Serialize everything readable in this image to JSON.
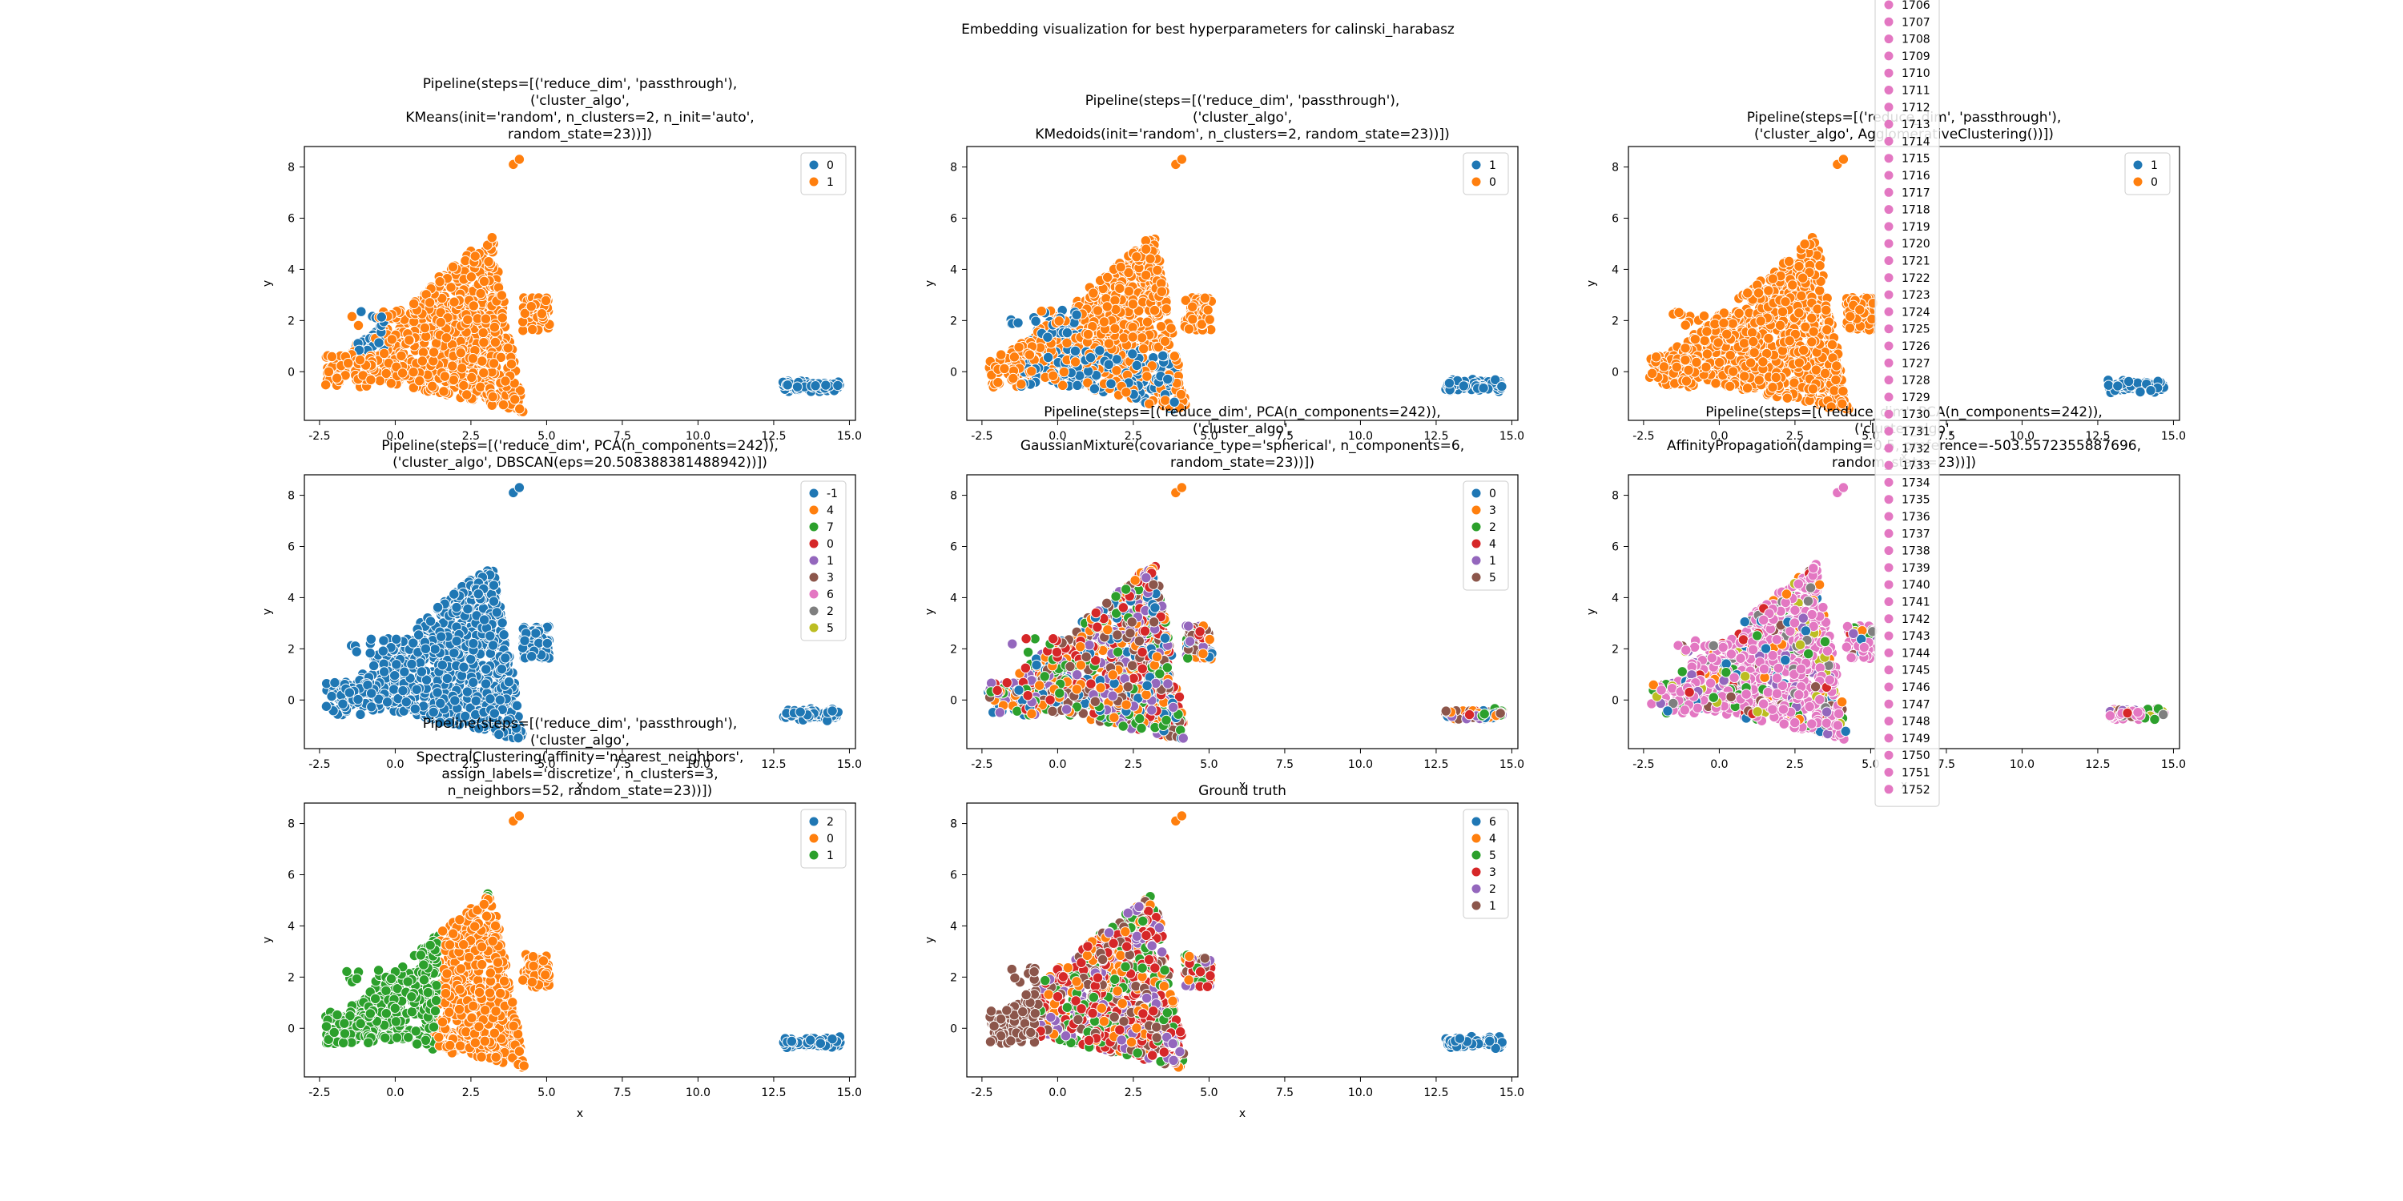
{
  "suptitle": "Embedding visualization for best hyperparameters for calinski_harabasz",
  "palette": [
    "#1f77b4",
    "#ff7f0e",
    "#2ca02c",
    "#d62728",
    "#9467bd",
    "#8c564b",
    "#e377c2",
    "#7f7f7f",
    "#bcbd22",
    "#17becf"
  ],
  "chart_data": [
    {
      "type": "scatter",
      "title_lines": [
        "Pipeline(steps=[('reduce_dim', 'passthrough'),",
        "('cluster_algo',",
        "KMeans(init='random', n_clusters=2, n_init='auto',",
        "random_state=23))])"
      ],
      "xlabel": "",
      "ylabel": "y",
      "xlim": [
        -3,
        15.2
      ],
      "ylim": [
        -1.9,
        8.8
      ],
      "xticks": [
        "-2.5",
        "0.0",
        "2.5",
        "5.0",
        "7.5",
        "10.0",
        "12.5",
        "15.0"
      ],
      "yticks": [
        "0",
        "2",
        "4",
        "6",
        "8"
      ],
      "legend": [
        "0",
        "1"
      ],
      "mode": "kmeans"
    },
    {
      "type": "scatter",
      "title_lines": [
        "Pipeline(steps=[('reduce_dim', 'passthrough'),",
        "('cluster_algo',",
        "KMedoids(init='random', n_clusters=2, random_state=23))])"
      ],
      "xlabel": "",
      "ylabel": "y",
      "xlim": [
        -3,
        15.2
      ],
      "ylim": [
        -1.9,
        8.8
      ],
      "xticks": [
        "-2.5",
        "0.0",
        "2.5",
        "5.0",
        "7.5",
        "10.0",
        "12.5",
        "15.0"
      ],
      "yticks": [
        "0",
        "2",
        "4",
        "6",
        "8"
      ],
      "legend": [
        "1",
        "0"
      ],
      "mode": "kmedoids"
    },
    {
      "type": "scatter",
      "title_lines": [
        "Pipeline(steps=[('reduce_dim', 'passthrough'),",
        "('cluster_algo', AgglomerativeClustering())])"
      ],
      "xlabel": "x",
      "ylabel": "y",
      "xlim": [
        -3,
        15.2
      ],
      "ylim": [
        -1.9,
        8.8
      ],
      "xticks": [
        "-2.5",
        "0.0",
        "2.5",
        "5.0",
        "7.5",
        "10.0",
        "12.5",
        "15.0"
      ],
      "yticks": [
        "0",
        "2",
        "4",
        "6",
        "8"
      ],
      "legend": [
        "1",
        "0"
      ],
      "mode": "agglo"
    },
    {
      "type": "scatter",
      "title_lines": [
        "Pipeline(steps=[('reduce_dim', PCA(n_components=242)),",
        "('cluster_algo', DBSCAN(eps=20.508388381488942))])"
      ],
      "xlabel": "x",
      "ylabel": "y",
      "xlim": [
        -3,
        15.2
      ],
      "ylim": [
        -1.9,
        8.8
      ],
      "xticks": [
        "-2.5",
        "0.0",
        "2.5",
        "5.0",
        "7.5",
        "10.0",
        "12.5",
        "15.0"
      ],
      "yticks": [
        "0",
        "2",
        "4",
        "6",
        "8"
      ],
      "legend": [
        "-1",
        "4",
        "7",
        "0",
        "1",
        "3",
        "6",
        "2",
        "5"
      ],
      "mode": "dbscan"
    },
    {
      "type": "scatter",
      "title_lines": [
        "Pipeline(steps=[('reduce_dim', PCA(n_components=242)),",
        "('cluster_algo',",
        "GaussianMixture(covariance_type='spherical', n_components=6,",
        "random_state=23))])"
      ],
      "xlabel": "x",
      "ylabel": "y",
      "xlim": [
        -3,
        15.2
      ],
      "ylim": [
        -1.9,
        8.8
      ],
      "xticks": [
        "-2.5",
        "0.0",
        "2.5",
        "5.0",
        "7.5",
        "10.0",
        "12.5",
        "15.0"
      ],
      "yticks": [
        "0",
        "2",
        "4",
        "6",
        "8"
      ],
      "legend": [
        "0",
        "3",
        "2",
        "4",
        "1",
        "5"
      ],
      "mode": "gmm"
    },
    {
      "type": "scatter",
      "title_lines": [
        "Pipeline(steps=[('reduce_dim', PCA(n_components=242)),",
        "('cluster_algo',",
        "AffinityPropagation(damping=0.5, preference=-503.5572355887696,",
        "random_state=23))])"
      ],
      "xlabel": "x",
      "ylabel": "y",
      "xlim": [
        -3,
        15.2
      ],
      "ylim": [
        -1.9,
        8.8
      ],
      "xticks": [
        "-2.5",
        "0.0",
        "2.5",
        "5.0",
        "7.5",
        "10.0",
        "12.5",
        "15.0"
      ],
      "yticks": [
        "0",
        "2",
        "4",
        "6",
        "8"
      ],
      "legend": [
        "1706",
        "1707",
        "1708",
        "1709",
        "1710",
        "1711",
        "1712",
        "1713",
        "1714",
        "1715",
        "1716",
        "1717",
        "1718",
        "1719",
        "1720",
        "1721",
        "1722",
        "1723",
        "1724",
        "1725",
        "1726",
        "1727",
        "1728",
        "1729",
        "1730",
        "1731",
        "1732",
        "1733",
        "1734",
        "1735",
        "1736",
        "1737",
        "1738",
        "1739",
        "1740",
        "1741",
        "1742",
        "1743",
        "1744",
        "1745",
        "1746",
        "1747",
        "1748",
        "1749",
        "1750",
        "1751",
        "1752"
      ],
      "legend_color": "#e377c2",
      "mode": "affinity"
    },
    {
      "type": "scatter",
      "title_lines": [
        "Pipeline(steps=[('reduce_dim', 'passthrough'),",
        "('cluster_algo',",
        "SpectralClustering(affinity='nearest_neighbors',",
        "assign_labels='discretize', n_clusters=3,",
        "n_neighbors=52, random_state=23))])"
      ],
      "xlabel": "x",
      "ylabel": "y",
      "xlim": [
        -3,
        15.2
      ],
      "ylim": [
        -1.9,
        8.8
      ],
      "xticks": [
        "-2.5",
        "0.0",
        "2.5",
        "5.0",
        "7.5",
        "10.0",
        "12.5",
        "15.0"
      ],
      "yticks": [
        "0",
        "2",
        "4",
        "6",
        "8"
      ],
      "legend": [
        "2",
        "0",
        "1"
      ],
      "mode": "spectral"
    },
    {
      "type": "scatter",
      "title_lines": [
        "Ground truth"
      ],
      "xlabel": "x",
      "ylabel": "y",
      "xlim": [
        -3,
        15.2
      ],
      "ylim": [
        -1.9,
        8.8
      ],
      "xticks": [
        "-2.5",
        "0.0",
        "2.5",
        "5.0",
        "7.5",
        "10.0",
        "12.5",
        "15.0"
      ],
      "yticks": [
        "0",
        "2",
        "4",
        "6",
        "8"
      ],
      "legend": [
        "6",
        "4",
        "5",
        "3",
        "2",
        "1"
      ],
      "mode": "truth"
    }
  ]
}
